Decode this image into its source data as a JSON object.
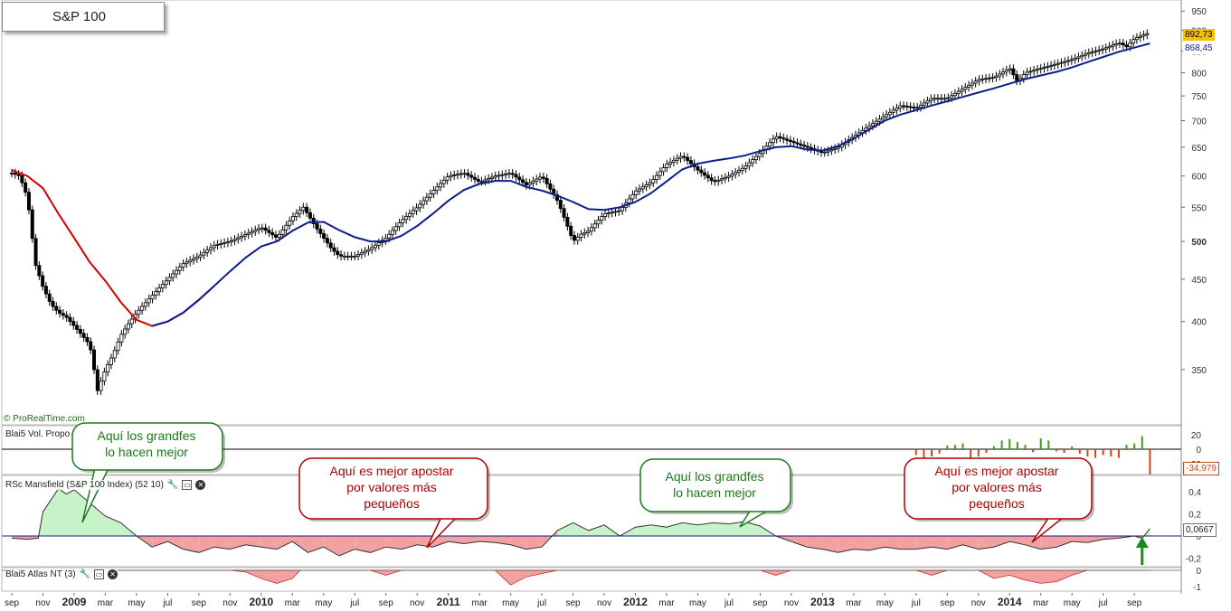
{
  "title": "S&P 100",
  "watermark": "© ProRealTime.com",
  "colors": {
    "red_ma": "#d40000",
    "blue_ma": "#0b1e8c",
    "green_fill": "#c8f2c8",
    "red_fill": "#f2a0a0",
    "vol_green": "#3a9e1a",
    "vol_red": "#c84a1a",
    "arrow_green": "#1a8a1a",
    "price_tag_bg": "#f5c200"
  },
  "panels": {
    "volume": {
      "label": "Blai5 Vol. Propo",
      "value_label": "-34,979",
      "ticks": [
        "20",
        "0",
        "-20"
      ]
    },
    "mansfield": {
      "label": "RSc Mansfield (S&P 100 Index) (52 10)",
      "value_label": "0,0667",
      "ticks": [
        "0,4",
        "0,2",
        "0",
        "-0,2"
      ]
    },
    "atlas": {
      "label": "Blai5 Atlas NT (3)",
      "ticks": [
        "0",
        "-1"
      ]
    }
  },
  "price_tags": {
    "last": "892,73",
    "ma": "868,45"
  },
  "callouts": [
    {
      "id": "c1",
      "text": "Aquí los grandfes lo hacen mejor",
      "color": "#1a7a1a"
    },
    {
      "id": "c2",
      "text": "Aquí es mejor apostar por valores más pequeños",
      "color": "#b00000"
    },
    {
      "id": "c3",
      "text": "Aquí los grandfes lo hacen mejor",
      "color": "#1a7a1a"
    },
    {
      "id": "c4",
      "text": "Aquí es mejor apostar por valores más pequeños",
      "color": "#b00000"
    }
  ],
  "chart_data": {
    "type": "line",
    "title": "S&P 100",
    "y_axis": {
      "scale": "log",
      "ticks": [
        950,
        900,
        850,
        800,
        750,
        700,
        650,
        600,
        550,
        500,
        450,
        400,
        350
      ],
      "range": [
        300,
        965
      ]
    },
    "x_axis_labels": [
      {
        "t": 0,
        "label": "sep"
      },
      {
        "t": 2,
        "label": "nov"
      },
      {
        "t": 4,
        "label": "2009"
      },
      {
        "t": 6,
        "label": "mar"
      },
      {
        "t": 8,
        "label": "may"
      },
      {
        "t": 10,
        "label": "jul"
      },
      {
        "t": 12,
        "label": "sep"
      },
      {
        "t": 14,
        "label": "nov"
      },
      {
        "t": 16,
        "label": "2010"
      },
      {
        "t": 18,
        "label": "mar"
      },
      {
        "t": 20,
        "label": "may"
      },
      {
        "t": 22,
        "label": "jul"
      },
      {
        "t": 24,
        "label": "sep"
      },
      {
        "t": 26,
        "label": "nov"
      },
      {
        "t": 28,
        "label": "2011"
      },
      {
        "t": 30,
        "label": "mar"
      },
      {
        "t": 32,
        "label": "may"
      },
      {
        "t": 34,
        "label": "jul"
      },
      {
        "t": 36,
        "label": "sep"
      },
      {
        "t": 38,
        "label": "nov"
      },
      {
        "t": 40,
        "label": "2012"
      },
      {
        "t": 42,
        "label": "mar"
      },
      {
        "t": 44,
        "label": "may"
      },
      {
        "t": 46,
        "label": "jul"
      },
      {
        "t": 48,
        "label": "sep"
      },
      {
        "t": 50,
        "label": "nov"
      },
      {
        "t": 52,
        "label": "2013"
      },
      {
        "t": 54,
        "label": "mar"
      },
      {
        "t": 56,
        "label": "may"
      },
      {
        "t": 58,
        "label": "jul"
      },
      {
        "t": 60,
        "label": "sep"
      },
      {
        "t": 62,
        "label": "nov"
      },
      {
        "t": 64,
        "label": "2014"
      },
      {
        "t": 66,
        "label": "mar"
      },
      {
        "t": 68,
        "label": "may"
      },
      {
        "t": 70,
        "label": "jul"
      },
      {
        "t": 72,
        "label": "sep"
      }
    ],
    "x_bold_labels": [
      "2009",
      "2010",
      "2011",
      "2012",
      "2013",
      "2014"
    ],
    "price_series": {
      "t": [
        0,
        0.5,
        1,
        1.5,
        2,
        2.5,
        3,
        3.5,
        4,
        4.5,
        5,
        5.5,
        6,
        6.5,
        7,
        7.5,
        8,
        9,
        10,
        11,
        12,
        13,
        14,
        15,
        16,
        17,
        18,
        18.7,
        19.5,
        20,
        20.5,
        21,
        22,
        23,
        24,
        25,
        26,
        27,
        28,
        29,
        30,
        31,
        32,
        33,
        34,
        35,
        36,
        36.5,
        37,
        38,
        39,
        40,
        41,
        42,
        43,
        44,
        45,
        46,
        47,
        48,
        49,
        50,
        51,
        52,
        53,
        54,
        55,
        56,
        57,
        58,
        59,
        60,
        61,
        62,
        63,
        64,
        64.5,
        65,
        66,
        67,
        68,
        69,
        70,
        71,
        71.5,
        72,
        73
      ],
      "close": [
        605,
        600,
        565,
        470,
        440,
        420,
        410,
        405,
        395,
        385,
        375,
        330,
        350,
        365,
        385,
        398,
        410,
        430,
        450,
        470,
        480,
        495,
        500,
        510,
        520,
        505,
        535,
        550,
        520,
        505,
        490,
        480,
        480,
        490,
        505,
        530,
        550,
        575,
        600,
        605,
        590,
        600,
        605,
        585,
        600,
        560,
        500,
        510,
        515,
        540,
        545,
        575,
        590,
        620,
        635,
        610,
        590,
        600,
        615,
        640,
        670,
        660,
        650,
        640,
        650,
        670,
        690,
        710,
        730,
        725,
        745,
        745,
        765,
        785,
        790,
        810,
        780,
        800,
        810,
        820,
        830,
        845,
        855,
        870,
        860,
        880,
        895
      ]
    },
    "ma_series": {
      "t": [
        0,
        1,
        2,
        3,
        4,
        5,
        6,
        7,
        8,
        9,
        10,
        11,
        12,
        13,
        14,
        15,
        16,
        17,
        18,
        19,
        20,
        21,
        22,
        23,
        24,
        25,
        26,
        27,
        28,
        29,
        30,
        31,
        32,
        33,
        34,
        35,
        36,
        37,
        38,
        39,
        40,
        41,
        42,
        43,
        44,
        45,
        46,
        47,
        48,
        49,
        50,
        51,
        52,
        53,
        54,
        55,
        56,
        57,
        58,
        59,
        60,
        61,
        62,
        63,
        64,
        65,
        66,
        67,
        68,
        69,
        70,
        71,
        72,
        73
      ],
      "value": [
        610,
        600,
        580,
        540,
        505,
        472,
        448,
        422,
        402,
        395,
        400,
        410,
        425,
        442,
        460,
        478,
        493,
        500,
        515,
        527,
        528,
        516,
        506,
        500,
        500,
        508,
        522,
        540,
        560,
        577,
        587,
        592,
        592,
        582,
        576,
        568,
        558,
        547,
        546,
        550,
        558,
        572,
        591,
        611,
        621,
        626,
        630,
        635,
        643,
        650,
        652,
        646,
        644,
        652,
        666,
        683,
        700,
        712,
        721,
        730,
        739,
        748,
        757,
        766,
        776,
        786,
        794,
        802,
        812,
        824,
        836,
        848,
        858,
        868
      ],
      "color_split_t": 13
    },
    "volume_series": {
      "t": [
        58,
        58.5,
        59,
        59.5,
        60,
        60.5,
        61,
        61.5,
        62,
        62.5,
        63,
        63.5,
        64,
        64.5,
        65,
        65.5,
        66,
        66.5,
        67,
        67.5,
        68,
        68.5,
        69,
        69.5,
        70,
        70.5,
        71,
        71.5,
        72,
        72.5,
        73
      ],
      "value": [
        -8,
        -12,
        -10,
        -6,
        5,
        6,
        8,
        -12,
        -10,
        -5,
        4,
        12,
        14,
        10,
        6,
        -4,
        15,
        12,
        -3,
        -5,
        4,
        -6,
        -10,
        -12,
        -8,
        -10,
        -12,
        6,
        8,
        18,
        -34.979
      ]
    },
    "mansfield_series": {
      "t": [
        0,
        1,
        1.7,
        2,
        3,
        3.5,
        4,
        5,
        6,
        7,
        8,
        9,
        10,
        11,
        12,
        13,
        14,
        15,
        16,
        17,
        18,
        19,
        20,
        21,
        22,
        23,
        24,
        25,
        26,
        27,
        28,
        29,
        30,
        31,
        32,
        33,
        34,
        35,
        36,
        37,
        38,
        39,
        40,
        41,
        42,
        43,
        44,
        45,
        46,
        47,
        48,
        49,
        50,
        51,
        52,
        53,
        54,
        55,
        56,
        57,
        58,
        59,
        60,
        61,
        62,
        63,
        64,
        65,
        66,
        67,
        68,
        69,
        70,
        71,
        72,
        72.5,
        73
      ],
      "value": [
        -0.02,
        -0.03,
        -0.02,
        0.22,
        0.43,
        0.38,
        0.42,
        0.3,
        0.18,
        0.12,
        0.0,
        -0.1,
        -0.05,
        -0.12,
        -0.15,
        -0.1,
        -0.12,
        -0.08,
        -0.1,
        -0.12,
        -0.05,
        -0.15,
        -0.1,
        -0.18,
        -0.12,
        -0.15,
        -0.1,
        -0.12,
        -0.08,
        -0.1,
        -0.05,
        -0.07,
        -0.05,
        -0.06,
        -0.08,
        -0.12,
        -0.1,
        0.05,
        0.12,
        0.05,
        0.1,
        0.0,
        0.08,
        0.1,
        0.08,
        0.12,
        0.1,
        0.12,
        0.11,
        0.13,
        0.09,
        0.0,
        -0.05,
        -0.1,
        -0.12,
        -0.15,
        -0.12,
        -0.13,
        -0.1,
        -0.12,
        -0.12,
        -0.1,
        -0.12,
        -0.08,
        -0.12,
        -0.1,
        -0.05,
        -0.08,
        -0.12,
        -0.1,
        -0.05,
        -0.06,
        -0.03,
        -0.02,
        0.0,
        -0.02,
        0.067
      ]
    },
    "atlas_series": {
      "t": [
        0,
        14,
        15,
        16,
        17,
        18,
        18.5,
        23,
        24,
        25,
        31,
        32,
        33,
        34,
        35,
        48,
        49,
        50,
        58,
        59,
        60,
        62,
        63,
        64,
        65,
        66,
        67,
        68,
        69,
        73
      ],
      "value": [
        0,
        0,
        -0.1,
        -0.5,
        -0.8,
        -0.5,
        0,
        0,
        -0.3,
        0,
        0,
        -0.9,
        -0.4,
        -0.2,
        0,
        0,
        -0.3,
        0,
        0,
        -0.3,
        0,
        0,
        -0.5,
        -0.3,
        -0.6,
        -0.8,
        -0.7,
        -0.3,
        0,
        0
      ]
    }
  }
}
